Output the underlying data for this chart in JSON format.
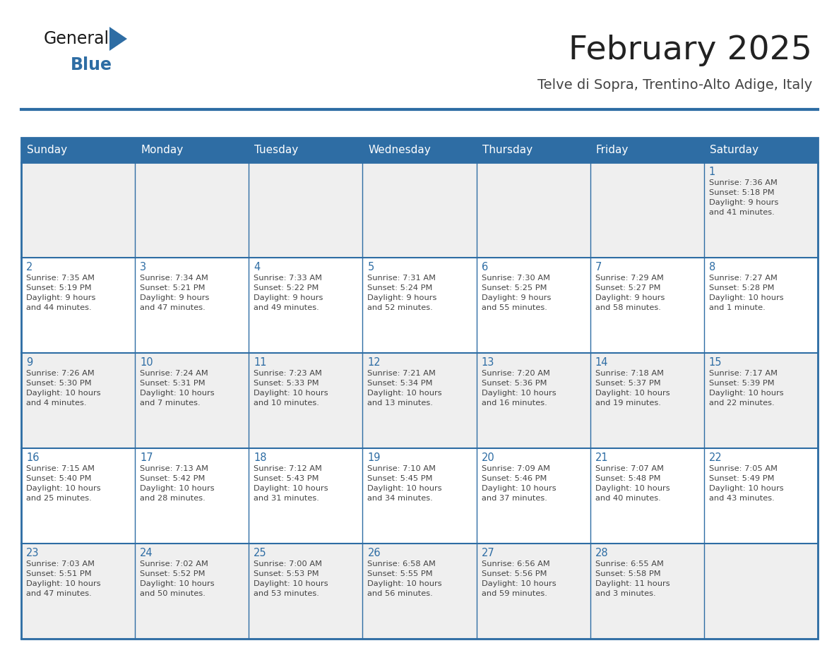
{
  "title": "February 2025",
  "subtitle": "Telve di Sopra, Trentino-Alto Adige, Italy",
  "days_of_week": [
    "Sunday",
    "Monday",
    "Tuesday",
    "Wednesday",
    "Thursday",
    "Friday",
    "Saturday"
  ],
  "header_bg": "#2E6DA4",
  "header_text": "#FFFFFF",
  "row_bg_even": "#EFEFEF",
  "row_bg_odd": "#FFFFFF",
  "border_color": "#2E6DA4",
  "title_color": "#222222",
  "subtitle_color": "#444444",
  "day_num_color": "#2E6DA4",
  "cell_text_color": "#444444",
  "logo_general_color": "#1a1a1a",
  "logo_blue_color": "#2E6DA4",
  "logo_triangle_color": "#2E6DA4",
  "calendar_data": [
    [
      null,
      null,
      null,
      null,
      null,
      null,
      {
        "day": 1,
        "sunrise": "7:36 AM",
        "sunset": "5:18 PM",
        "daylight": "9 hours",
        "daylight2": "and 41 minutes."
      }
    ],
    [
      {
        "day": 2,
        "sunrise": "7:35 AM",
        "sunset": "5:19 PM",
        "daylight": "9 hours",
        "daylight2": "and 44 minutes."
      },
      {
        "day": 3,
        "sunrise": "7:34 AM",
        "sunset": "5:21 PM",
        "daylight": "9 hours",
        "daylight2": "and 47 minutes."
      },
      {
        "day": 4,
        "sunrise": "7:33 AM",
        "sunset": "5:22 PM",
        "daylight": "9 hours",
        "daylight2": "and 49 minutes."
      },
      {
        "day": 5,
        "sunrise": "7:31 AM",
        "sunset": "5:24 PM",
        "daylight": "9 hours",
        "daylight2": "and 52 minutes."
      },
      {
        "day": 6,
        "sunrise": "7:30 AM",
        "sunset": "5:25 PM",
        "daylight": "9 hours",
        "daylight2": "and 55 minutes."
      },
      {
        "day": 7,
        "sunrise": "7:29 AM",
        "sunset": "5:27 PM",
        "daylight": "9 hours",
        "daylight2": "and 58 minutes."
      },
      {
        "day": 8,
        "sunrise": "7:27 AM",
        "sunset": "5:28 PM",
        "daylight": "10 hours",
        "daylight2": "and 1 minute."
      }
    ],
    [
      {
        "day": 9,
        "sunrise": "7:26 AM",
        "sunset": "5:30 PM",
        "daylight": "10 hours",
        "daylight2": "and 4 minutes."
      },
      {
        "day": 10,
        "sunrise": "7:24 AM",
        "sunset": "5:31 PM",
        "daylight": "10 hours",
        "daylight2": "and 7 minutes."
      },
      {
        "day": 11,
        "sunrise": "7:23 AM",
        "sunset": "5:33 PM",
        "daylight": "10 hours",
        "daylight2": "and 10 minutes."
      },
      {
        "day": 12,
        "sunrise": "7:21 AM",
        "sunset": "5:34 PM",
        "daylight": "10 hours",
        "daylight2": "and 13 minutes."
      },
      {
        "day": 13,
        "sunrise": "7:20 AM",
        "sunset": "5:36 PM",
        "daylight": "10 hours",
        "daylight2": "and 16 minutes."
      },
      {
        "day": 14,
        "sunrise": "7:18 AM",
        "sunset": "5:37 PM",
        "daylight": "10 hours",
        "daylight2": "and 19 minutes."
      },
      {
        "day": 15,
        "sunrise": "7:17 AM",
        "sunset": "5:39 PM",
        "daylight": "10 hours",
        "daylight2": "and 22 minutes."
      }
    ],
    [
      {
        "day": 16,
        "sunrise": "7:15 AM",
        "sunset": "5:40 PM",
        "daylight": "10 hours",
        "daylight2": "and 25 minutes."
      },
      {
        "day": 17,
        "sunrise": "7:13 AM",
        "sunset": "5:42 PM",
        "daylight": "10 hours",
        "daylight2": "and 28 minutes."
      },
      {
        "day": 18,
        "sunrise": "7:12 AM",
        "sunset": "5:43 PM",
        "daylight": "10 hours",
        "daylight2": "and 31 minutes."
      },
      {
        "day": 19,
        "sunrise": "7:10 AM",
        "sunset": "5:45 PM",
        "daylight": "10 hours",
        "daylight2": "and 34 minutes."
      },
      {
        "day": 20,
        "sunrise": "7:09 AM",
        "sunset": "5:46 PM",
        "daylight": "10 hours",
        "daylight2": "and 37 minutes."
      },
      {
        "day": 21,
        "sunrise": "7:07 AM",
        "sunset": "5:48 PM",
        "daylight": "10 hours",
        "daylight2": "and 40 minutes."
      },
      {
        "day": 22,
        "sunrise": "7:05 AM",
        "sunset": "5:49 PM",
        "daylight": "10 hours",
        "daylight2": "and 43 minutes."
      }
    ],
    [
      {
        "day": 23,
        "sunrise": "7:03 AM",
        "sunset": "5:51 PM",
        "daylight": "10 hours",
        "daylight2": "and 47 minutes."
      },
      {
        "day": 24,
        "sunrise": "7:02 AM",
        "sunset": "5:52 PM",
        "daylight": "10 hours",
        "daylight2": "and 50 minutes."
      },
      {
        "day": 25,
        "sunrise": "7:00 AM",
        "sunset": "5:53 PM",
        "daylight": "10 hours",
        "daylight2": "and 53 minutes."
      },
      {
        "day": 26,
        "sunrise": "6:58 AM",
        "sunset": "5:55 PM",
        "daylight": "10 hours",
        "daylight2": "and 56 minutes."
      },
      {
        "day": 27,
        "sunrise": "6:56 AM",
        "sunset": "5:56 PM",
        "daylight": "10 hours",
        "daylight2": "and 59 minutes."
      },
      {
        "day": 28,
        "sunrise": "6:55 AM",
        "sunset": "5:58 PM",
        "daylight": "11 hours",
        "daylight2": "and 3 minutes."
      },
      null
    ]
  ]
}
